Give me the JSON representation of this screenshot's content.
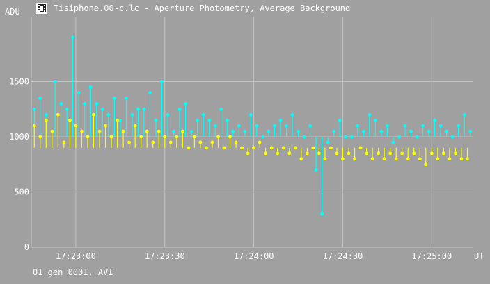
{
  "window": {
    "title": "Tisiphone.00-c.lc - Aperture Photometry, Average Background",
    "icon": "film-strip-icon"
  },
  "footer": {
    "status": "01 gen 0001, AVI"
  },
  "colors": {
    "background": "#a0a0a0",
    "grid": "#c4c4c4",
    "text": "#ffffff",
    "series_cyan": "#00ffff",
    "series_yellow": "#ffff00"
  },
  "chart_data": {
    "type": "scatter",
    "title": "",
    "ylabel": "ADU",
    "xlabel": "UT",
    "x_ticks": [
      "17:23:00",
      "17:23:30",
      "17:24:00",
      "17:24:30",
      "17:25:00"
    ],
    "x_tick_seconds": [
      62580,
      62610,
      62640,
      62670,
      62700
    ],
    "y_ticks": [
      0,
      500,
      1000,
      1500
    ],
    "xlim_seconds": [
      62565,
      62714
    ],
    "ylim": [
      0,
      2000
    ],
    "grid": true,
    "series": [
      {
        "color": "#00ffff",
        "x_seconds": [
          62566,
          62568,
          62570,
          62573,
          62575,
          62577,
          62579,
          62581,
          62583,
          62585,
          62587,
          62589,
          62591,
          62593,
          62595,
          62597,
          62599,
          62601,
          62603,
          62605,
          62607,
          62609,
          62611,
          62613,
          62615,
          62617,
          62619,
          62621,
          62623,
          62625,
          62627,
          62629,
          62631,
          62633,
          62635,
          62637,
          62639,
          62641,
          62643,
          62645,
          62647,
          62649,
          62651,
          62653,
          62655,
          62657,
          62659,
          62661,
          62663,
          62665,
          62667,
          62669,
          62671,
          62673,
          62675,
          62677,
          62679,
          62681,
          62683,
          62685,
          62687,
          62689,
          62691,
          62693,
          62695,
          62697,
          62699,
          62701,
          62703,
          62705,
          62707,
          62709,
          62711,
          62713
        ],
        "values": [
          1250,
          1350,
          1200,
          1500,
          1300,
          1250,
          1900,
          1400,
          1300,
          1450,
          1300,
          1250,
          1200,
          1350,
          1150,
          1350,
          1200,
          1250,
          1250,
          1400,
          1150,
          1500,
          1200,
          1050,
          1250,
          1300,
          1050,
          1150,
          1200,
          1150,
          1100,
          1250,
          1150,
          1050,
          1100,
          1050,
          1200,
          1100,
          1000,
          1050,
          1100,
          1150,
          1100,
          1200,
          1050,
          1000,
          1100,
          700,
          300,
          950,
          1050,
          1150,
          1000,
          1000,
          1100,
          1050,
          1200,
          1150,
          1050,
          1100,
          950,
          1000,
          1100,
          1050,
          1000,
          1100,
          1050,
          1150,
          1100,
          1050,
          1000,
          1100,
          1200,
          1050
        ]
      },
      {
        "color": "#ffff00",
        "x_seconds": [
          62566,
          62568,
          62570,
          62572,
          62574,
          62576,
          62578,
          62580,
          62582,
          62584,
          62586,
          62588,
          62590,
          62592,
          62594,
          62596,
          62598,
          62600,
          62602,
          62604,
          62606,
          62608,
          62610,
          62612,
          62614,
          62616,
          62618,
          62620,
          62622,
          62624,
          62626,
          62628,
          62630,
          62632,
          62634,
          62636,
          62638,
          62640,
          62642,
          62644,
          62646,
          62648,
          62650,
          62652,
          62654,
          62656,
          62658,
          62660,
          62662,
          62664,
          62666,
          62668,
          62670,
          62672,
          62674,
          62676,
          62678,
          62680,
          62682,
          62684,
          62686,
          62688,
          62690,
          62692,
          62694,
          62696,
          62698,
          62700,
          62702,
          62704,
          62706,
          62708,
          62710,
          62712
        ],
        "values": [
          1100,
          1000,
          1150,
          1050,
          1200,
          950,
          1150,
          1100,
          1050,
          1000,
          1200,
          1050,
          1100,
          1000,
          1150,
          1050,
          950,
          1100,
          1000,
          1050,
          950,
          1050,
          1000,
          950,
          1000,
          1050,
          900,
          1000,
          950,
          900,
          950,
          1000,
          900,
          1000,
          950,
          900,
          850,
          900,
          950,
          850,
          900,
          850,
          900,
          850,
          900,
          800,
          850,
          900,
          850,
          800,
          900,
          850,
          800,
          850,
          800,
          900,
          850,
          800,
          850,
          800,
          850,
          800,
          850,
          800,
          850,
          800,
          750,
          850,
          800,
          850,
          800,
          850,
          800,
          800
        ]
      }
    ]
  }
}
